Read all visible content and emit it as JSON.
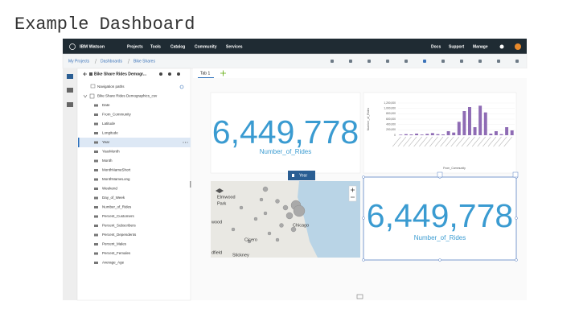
{
  "title": "Example Dashboard",
  "top_bar": {
    "brand": "IBM Watson",
    "nav": [
      "Projects",
      "Tools",
      "Catalog",
      "Community",
      "Services"
    ],
    "right": [
      "Docs",
      "Support",
      "Manage"
    ]
  },
  "breadcrumb": [
    "My Projects",
    "Dashboards",
    "Bike Shares"
  ],
  "data_panel": {
    "source": "Bike Share Rides Demogr...",
    "nav_paths": "Navigation paths",
    "dataset": "Bike Share Rides Demographics_csv",
    "fields": [
      {
        "name": "Date"
      },
      {
        "name": "From_Community"
      },
      {
        "name": "Latitude"
      },
      {
        "name": "Longitude"
      },
      {
        "name": "Year",
        "selected": true
      },
      {
        "name": "YearMonth"
      },
      {
        "name": "Month"
      },
      {
        "name": "MonthNameShort"
      },
      {
        "name": "MonthNameLong"
      },
      {
        "name": "Weekend"
      },
      {
        "name": "Day_of_Week"
      },
      {
        "name": "Number_of_Rides"
      },
      {
        "name": "Percent_Customers"
      },
      {
        "name": "Percent_Subscribers"
      },
      {
        "name": "Percent_Dependents"
      },
      {
        "name": "Percent_Males"
      },
      {
        "name": "Percent_Females"
      },
      {
        "name": "Average_Age"
      }
    ]
  },
  "tab": "Tab 1",
  "kpi_widgets": [
    {
      "value": "6,449,778",
      "label": "Number_of_Rides"
    },
    {
      "value": "6,449,778",
      "label": "Number_of_Rides"
    }
  ],
  "bar_chart": {
    "type": "bar",
    "y_label": "Number_of_Rides",
    "x_label": "From_Community",
    "color": "#8e6bb4",
    "ylim": [
      0,
      1200000
    ],
    "yticks": [
      0,
      {
        "value": 200000,
        "label": "200,000"
      },
      {
        "value": 400000,
        "label": "400,000"
      },
      {
        "value": 600000,
        "label": "600,000"
      },
      {
        "value": 800000,
        "label": "800,000"
      },
      {
        "value": 1000000,
        "label": "1,000,000"
      },
      {
        "value": 1200000,
        "label": "1,200,000"
      }
    ],
    "values": [
      20000,
      40000,
      30000,
      60000,
      25000,
      50000,
      80000,
      40000,
      30000,
      150000,
      100000,
      500000,
      900000,
      1050000,
      300000,
      1100000,
      850000,
      60000,
      150000,
      40000,
      300000,
      180000
    ]
  },
  "map": {
    "labels": [
      "Elmwood",
      "Park",
      "wood",
      "Chicago",
      "Cicero",
      "dfield",
      "Stickney"
    ]
  },
  "filter_chip": "Year"
}
